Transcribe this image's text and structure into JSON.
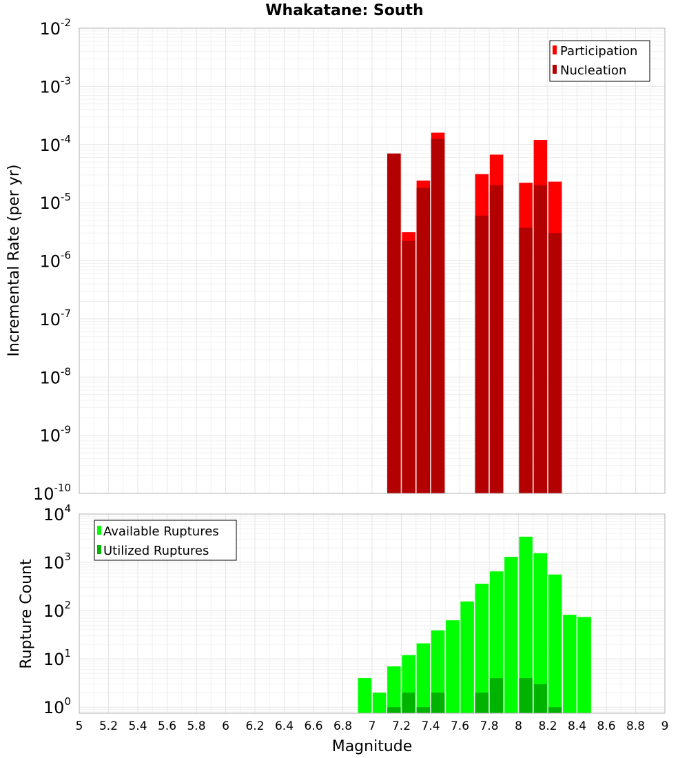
{
  "chart_data": [
    {
      "type": "bar",
      "panel": "top",
      "title": "Whakatane: South",
      "ylabel": "Incremental Rate (per yr)",
      "xlabel": "",
      "yscale": "log",
      "ylim": [
        1e-10,
        0.01
      ],
      "xlim": [
        5,
        9
      ],
      "y_tick_exponents": [
        "-2",
        "-3",
        "-4",
        "-5",
        "-6",
        "-7",
        "-8",
        "-9",
        "-10"
      ],
      "y_tick_base": "10",
      "legend": {
        "position": "top-right",
        "entries": [
          "Participation",
          "Nucleation"
        ]
      },
      "colors": {
        "Participation": "#ff0000",
        "Nucleation": "#b30000"
      },
      "series": [
        {
          "name": "Participation",
          "x": [
            7.15,
            7.25,
            7.35,
            7.45,
            7.75,
            7.85,
            8.05,
            8.15,
            8.25
          ],
          "values": [
            7e-05,
            3.1e-06,
            2.4e-05,
            0.00016,
            3.1e-05,
            6.7e-05,
            2.2e-05,
            0.00012,
            2.3e-05
          ]
        },
        {
          "name": "Nucleation",
          "x": [
            7.15,
            7.25,
            7.35,
            7.45,
            7.75,
            7.85,
            8.05,
            8.15,
            8.25
          ],
          "values": [
            7e-05,
            2.2e-06,
            1.8e-05,
            0.000125,
            6e-06,
            2e-05,
            3.7e-06,
            2e-05,
            3e-06
          ]
        }
      ]
    },
    {
      "type": "bar",
      "panel": "bottom",
      "title": "",
      "ylabel": "Rupture Count",
      "xlabel": "Magnitude",
      "yscale": "log",
      "ylim": [
        0.75,
        10000
      ],
      "xlim": [
        5,
        9
      ],
      "y_tick_exponents": [
        "4",
        "3",
        "2",
        "1",
        "0"
      ],
      "y_tick_base": "10",
      "x_ticks": [
        "5",
        "5.2",
        "5.4",
        "5.6",
        "5.8",
        "6",
        "6.2",
        "6.4",
        "6.6",
        "6.8",
        "7",
        "7.2",
        "7.4",
        "7.6",
        "7.8",
        "8",
        "8.2",
        "8.4",
        "8.6",
        "8.8",
        "9"
      ],
      "legend": {
        "position": "top-left",
        "entries": [
          "Available Ruptures",
          "Utilized Ruptures"
        ]
      },
      "colors": {
        "Available Ruptures": "#00ff00",
        "Utilized Ruptures": "#00b300"
      },
      "series": [
        {
          "name": "Available Ruptures",
          "x": [
            6.95,
            7.05,
            7.15,
            7.25,
            7.35,
            7.45,
            7.55,
            7.65,
            7.75,
            7.85,
            7.95,
            8.05,
            8.15,
            8.25,
            8.35,
            8.45
          ],
          "values": [
            4,
            2,
            7,
            12,
            21,
            39,
            63,
            155,
            360,
            650,
            1300,
            3400,
            1550,
            560,
            82,
            74
          ]
        },
        {
          "name": "Utilized Ruptures",
          "x": [
            7.15,
            7.25,
            7.35,
            7.45,
            7.75,
            7.85,
            8.05,
            8.15,
            8.25
          ],
          "values": [
            1,
            2,
            1,
            2,
            2,
            4,
            4,
            3,
            1
          ]
        }
      ]
    }
  ]
}
